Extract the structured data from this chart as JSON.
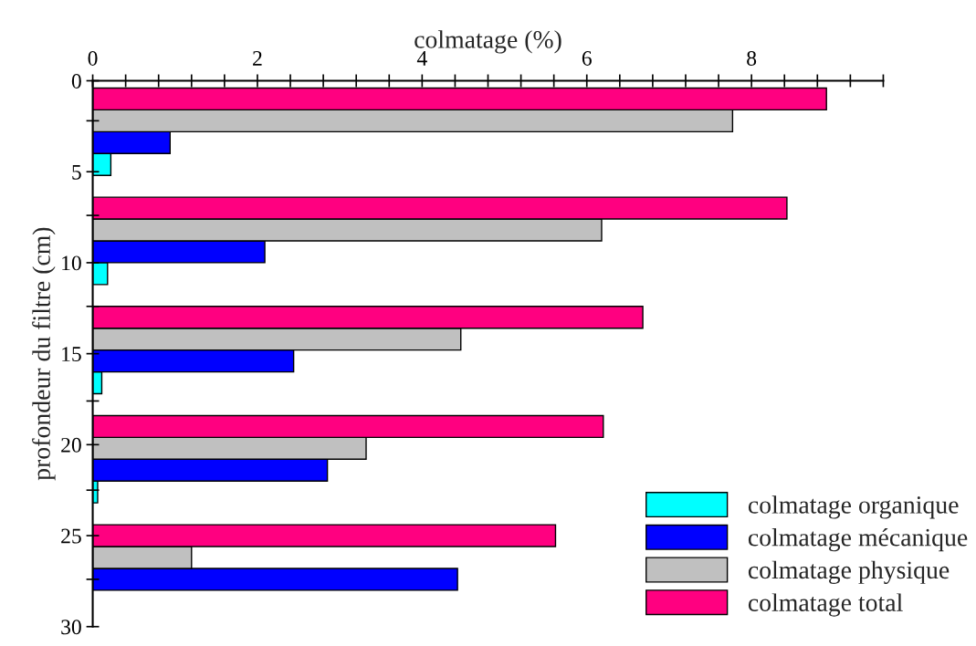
{
  "chart_data": {
    "type": "bar",
    "orientation": "horizontal",
    "xlabel": "colmatage (%)",
    "ylabel": "profondeur du filtre (cm)",
    "xlim": [
      0,
      9.6
    ],
    "xticks": [
      0,
      {
        "value": 0.4,
        "label": null
      },
      {
        "value": 0.8,
        "label": null
      },
      {
        "value": 1.2,
        "label": null
      },
      {
        "value": 1.6,
        "label": null
      },
      2,
      {
        "value": 2.4,
        "label": null
      },
      {
        "value": 2.8,
        "label": null
      },
      {
        "value": 3.2,
        "label": null
      },
      {
        "value": 3.6,
        "label": null
      },
      4,
      {
        "value": 4.4,
        "label": null
      },
      {
        "value": 4.8,
        "label": null
      },
      {
        "value": 5.2,
        "label": null
      },
      {
        "value": 5.6,
        "label": null
      },
      6,
      {
        "value": 6.4,
        "label": null
      },
      {
        "value": 6.8,
        "label": null
      },
      {
        "value": 7.2,
        "label": null
      },
      {
        "value": 7.6,
        "label": null
      },
      8,
      {
        "value": 8.4,
        "label": null
      },
      {
        "value": 8.8,
        "label": null
      },
      {
        "value": 9.2,
        "label": null
      },
      {
        "value": 9.6,
        "label": null
      }
    ],
    "ylim": [
      30,
      0
    ],
    "yticks": [
      0,
      {
        "value": 2.2,
        "label": null
      },
      5,
      {
        "value": 7.4,
        "label": null
      },
      10,
      {
        "value": 12.4,
        "label": null
      },
      15,
      {
        "value": 17.6,
        "label": null
      },
      20,
      {
        "value": 22.5,
        "label": null
      },
      25,
      {
        "value": 27.4,
        "label": null
      },
      30
    ],
    "legend": "bottom right",
    "grid": false,
    "series": [
      {
        "name": "colmatage organique",
        "color": "#00ffff",
        "x": [
          4.6,
          10.6,
          16.6,
          22.6
        ],
        "values": [
          0.22,
          0.18,
          0.11,
          0.06
        ]
      },
      {
        "name": "colmatage mécanique",
        "color": "#0000ff",
        "x": [
          3.4,
          9.4,
          15.4,
          21.4,
          27.4
        ],
        "values": [
          0.94,
          2.09,
          2.44,
          2.85,
          4.43
        ]
      },
      {
        "name": "colmatage physique",
        "color": "#c0c0c0",
        "x": [
          2.2,
          8.2,
          14.2,
          20.2,
          26.2
        ],
        "values": [
          7.77,
          6.18,
          4.47,
          3.32,
          1.2
        ]
      },
      {
        "name": "colmatage total",
        "color": "#ff0080",
        "x": [
          1,
          7,
          13,
          19,
          25
        ],
        "values": [
          8.91,
          8.43,
          6.68,
          6.2,
          5.62
        ]
      }
    ]
  }
}
